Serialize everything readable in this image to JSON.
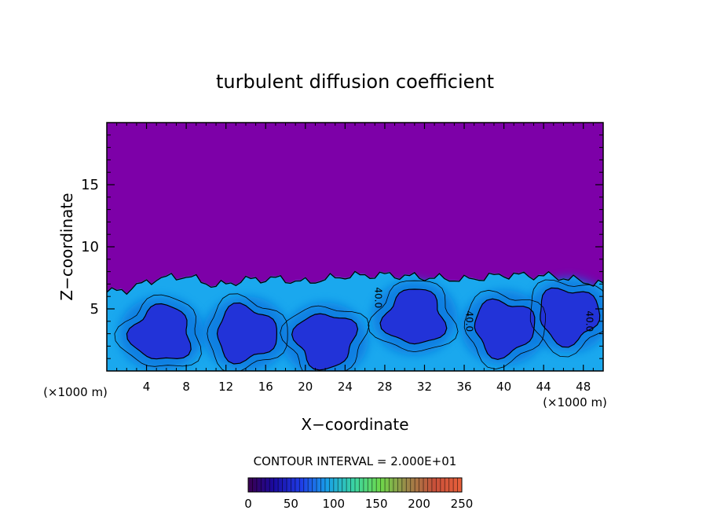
{
  "chart_data": {
    "type": "heatmap",
    "title": "turbulent diffusion coefficient",
    "xlabel": "X−coordinate",
    "ylabel": "Z−coordinate",
    "x_unit_left": "(×1000 m)",
    "x_unit_right": "(×1000 m)",
    "x_ticks": [
      "4",
      "8",
      "12",
      "16",
      "20",
      "24",
      "28",
      "32",
      "36",
      "40",
      "44",
      "48"
    ],
    "x_tick_values": [
      4,
      8,
      12,
      16,
      20,
      24,
      28,
      32,
      36,
      40,
      44,
      48
    ],
    "y_ticks": [
      "5",
      "10",
      "15"
    ],
    "y_tick_values": [
      5,
      10,
      15
    ],
    "xlim": [
      0,
      50
    ],
    "ylim": [
      0,
      20
    ],
    "contour_interval_text": "CONTOUR INTERVAL = 2.000E+01",
    "contour_labels": [
      {
        "text": "40.0",
        "x": 27.0,
        "z": 5.9
      },
      {
        "text": "40.0",
        "x": 36.2,
        "z": 4.0
      },
      {
        "text": "40.0",
        "x": 48.3,
        "z": 4.0
      }
    ],
    "colorbar": {
      "min": 0,
      "max": 250,
      "ticks": [
        "0",
        "50",
        "100",
        "150",
        "200",
        "250"
      ],
      "tick_values": [
        0,
        50,
        100,
        150,
        200,
        250
      ]
    },
    "boundary_layer_top_z": [
      6.4,
      6.6,
      7.5,
      7.7,
      6.9,
      7.4,
      7.5,
      7.2,
      7.7,
      7.8,
      7.6,
      7.4,
      7.8,
      7.7,
      7.0
    ],
    "boundary_layer_top_x": [
      0,
      2,
      5,
      8,
      11,
      14,
      17,
      20,
      24,
      28,
      32,
      36,
      40,
      45,
      50
    ],
    "eddy_cores": [
      {
        "x": 5.5,
        "z": 3.0
      },
      {
        "x": 14.0,
        "z": 3.0
      },
      {
        "x": 22.0,
        "z": 2.5
      },
      {
        "x": 31.0,
        "z": 4.3
      },
      {
        "x": 40.0,
        "z": 3.5
      },
      {
        "x": 46.5,
        "z": 4.5
      }
    ],
    "colors": {
      "background_field": "#7d00a8",
      "boundary_layer": "#1aa8ee",
      "eddy_core": "#2233d8",
      "mid_band": "#0f78e0",
      "contour": "#000000"
    }
  }
}
